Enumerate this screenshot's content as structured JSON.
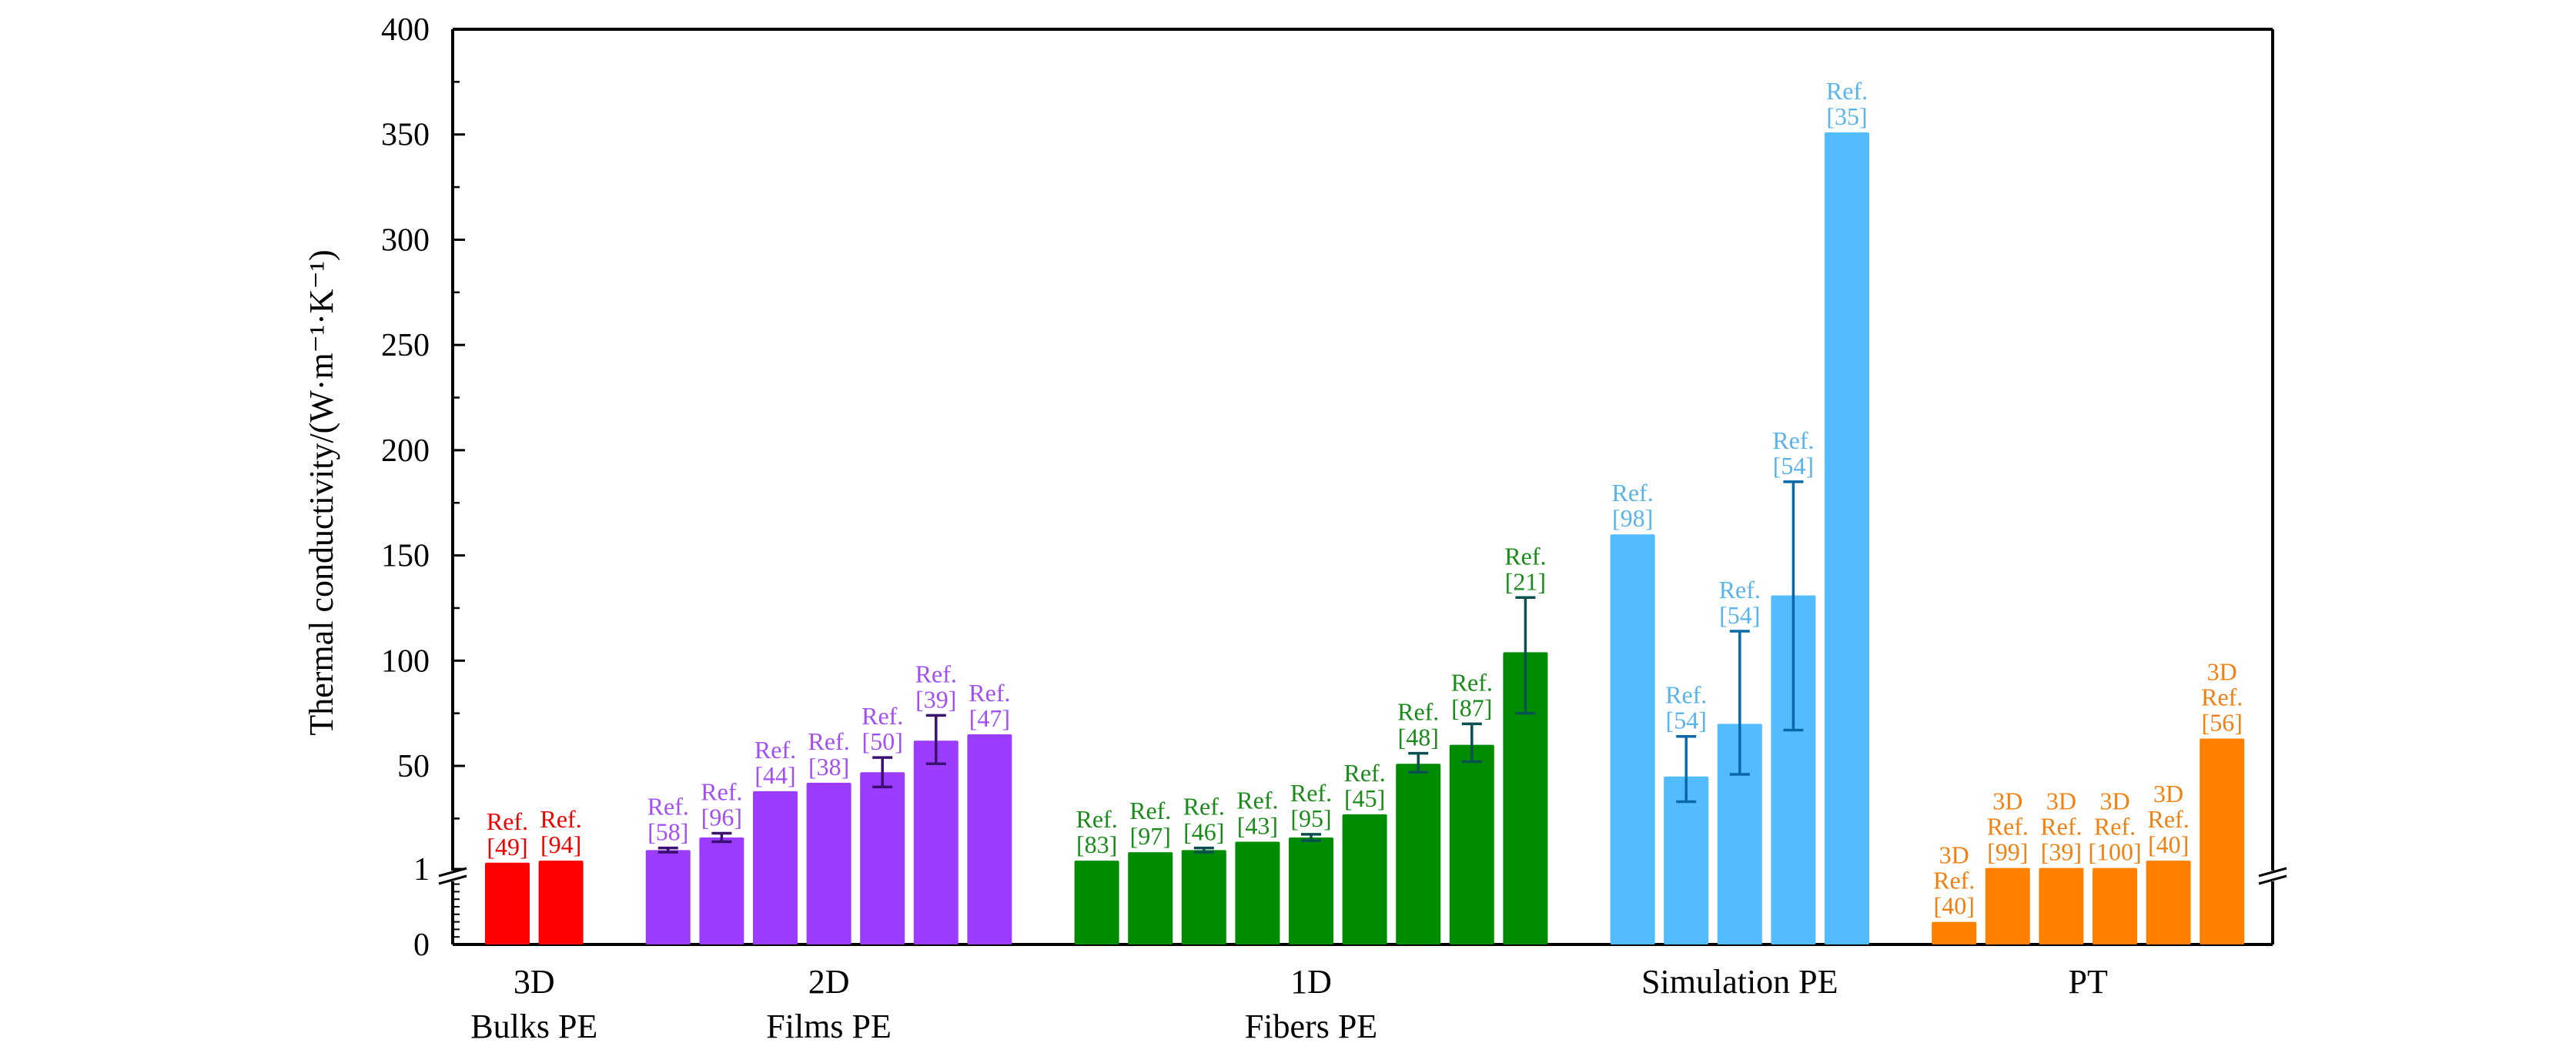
{
  "chart_data": {
    "type": "bar",
    "title": "",
    "ylabel": "Thermal conductivity/(W·m⁻¹·K⁻¹)",
    "xlabel": "",
    "y_axis": {
      "broken": true,
      "break_at": 1,
      "lower_segment": [
        0,
        1
      ],
      "upper_segment": [
        1,
        400
      ],
      "tick_labels": [
        "0",
        "1",
        "50",
        "100",
        "150",
        "200",
        "250",
        "300",
        "350",
        "400"
      ],
      "tick_values": [
        0,
        1,
        50,
        100,
        150,
        200,
        250,
        300,
        350,
        400
      ]
    },
    "grid": false,
    "legend": "none",
    "groups": [
      {
        "name_lines": [
          "3D",
          "Bulks PE"
        ],
        "color": "#ff0000",
        "label_color": "#ee0000",
        "error_color": "#800000",
        "bars": [
          {
            "label": [
              "Ref.",
              "[49]"
            ],
            "value": 4
          },
          {
            "label": [
              "Ref.",
              "[94]"
            ],
            "value": 5
          }
        ]
      },
      {
        "name_lines": [
          "2D",
          "Films PE"
        ],
        "color": "#9b3cff",
        "label_color": "#a050f5",
        "error_color": "#3a1070",
        "bars": [
          {
            "label": [
              "Ref.",
              "[58]"
            ],
            "value": 10,
            "error": [
              9,
              11
            ]
          },
          {
            "label": [
              "Ref.",
              "[96]"
            ],
            "value": 16,
            "error": [
              14,
              18
            ]
          },
          {
            "label": [
              "Ref.",
              "[44]"
            ],
            "value": 38
          },
          {
            "label": [
              "Ref.",
              "[38]"
            ],
            "value": 42
          },
          {
            "label": [
              "Ref.",
              "[50]"
            ],
            "value": 47,
            "error": [
              40,
              54
            ]
          },
          {
            "label": [
              "Ref.",
              "[39]"
            ],
            "value": 62,
            "error": [
              51,
              74
            ]
          },
          {
            "label": [
              "Ref.",
              "[47]"
            ],
            "value": 65
          }
        ]
      },
      {
        "name_lines": [
          "1D",
          "Fibers PE"
        ],
        "color": "#008c00",
        "label_color": "#1a8a1a",
        "error_color": "#0a5050",
        "bars": [
          {
            "label": [
              "Ref.",
              "[83]"
            ],
            "value": 5
          },
          {
            "label": [
              "Ref.",
              "[97]"
            ],
            "value": 9
          },
          {
            "label": [
              "Ref.",
              "[46]"
            ],
            "value": 10,
            "error": [
              9,
              11
            ]
          },
          {
            "label": [
              "Ref.",
              "[43]"
            ],
            "value": 14
          },
          {
            "label": [
              "Ref.",
              "[95]"
            ],
            "value": 16,
            "error": [
              14.5,
              17.5
            ]
          },
          {
            "label": [
              "Ref.",
              "[45]"
            ],
            "value": 27
          },
          {
            "label": [
              "Ref.",
              "[48]"
            ],
            "value": 51,
            "error": [
              47,
              56
            ]
          },
          {
            "label": [
              "Ref.",
              "[87]"
            ],
            "value": 60,
            "error": [
              52,
              70
            ]
          },
          {
            "label": [
              "Ref.",
              "[21]"
            ],
            "value": 104,
            "error": [
              75,
              130
            ]
          }
        ]
      },
      {
        "name_lines": [
          "Simulation PE"
        ],
        "color": "#52bcff",
        "label_color": "#58b4ea",
        "error_color": "#0a68a8",
        "bars": [
          {
            "label": [
              "Ref.",
              "[98]"
            ],
            "value": 160
          },
          {
            "label": [
              "Ref.",
              "[54]"
            ],
            "value": 45,
            "error": [
              33,
              64
            ]
          },
          {
            "label": [
              "Ref.",
              "[54]"
            ],
            "value": 70,
            "error": [
              46,
              114
            ]
          },
          {
            "label": [
              "Ref.",
              "[54]"
            ],
            "value": 131,
            "error": [
              67,
              185
            ]
          },
          {
            "label": [
              "Ref.",
              "[35]"
            ],
            "value": 351
          }
        ]
      },
      {
        "name_lines": [
          "PT"
        ],
        "color": "#ff8000",
        "label_color": "#f08010",
        "error_color": "#804000",
        "bars": [
          {
            "label": [
              "3D",
              "Ref.",
              "[40]"
            ],
            "value": 0.3
          },
          {
            "label": [
              "3D",
              "Ref.",
              "[99]"
            ],
            "value": 1.5
          },
          {
            "label": [
              "3D",
              "Ref.",
              "[39]"
            ],
            "value": 1.5
          },
          {
            "label": [
              "3D",
              "Ref.",
              "[100]"
            ],
            "value": 1.5
          },
          {
            "label": [
              "3D",
              "Ref.",
              "[40]"
            ],
            "value": 5
          },
          {
            "label": [
              "3D",
              "Ref.",
              "[56]"
            ],
            "value": 63
          }
        ]
      }
    ]
  }
}
